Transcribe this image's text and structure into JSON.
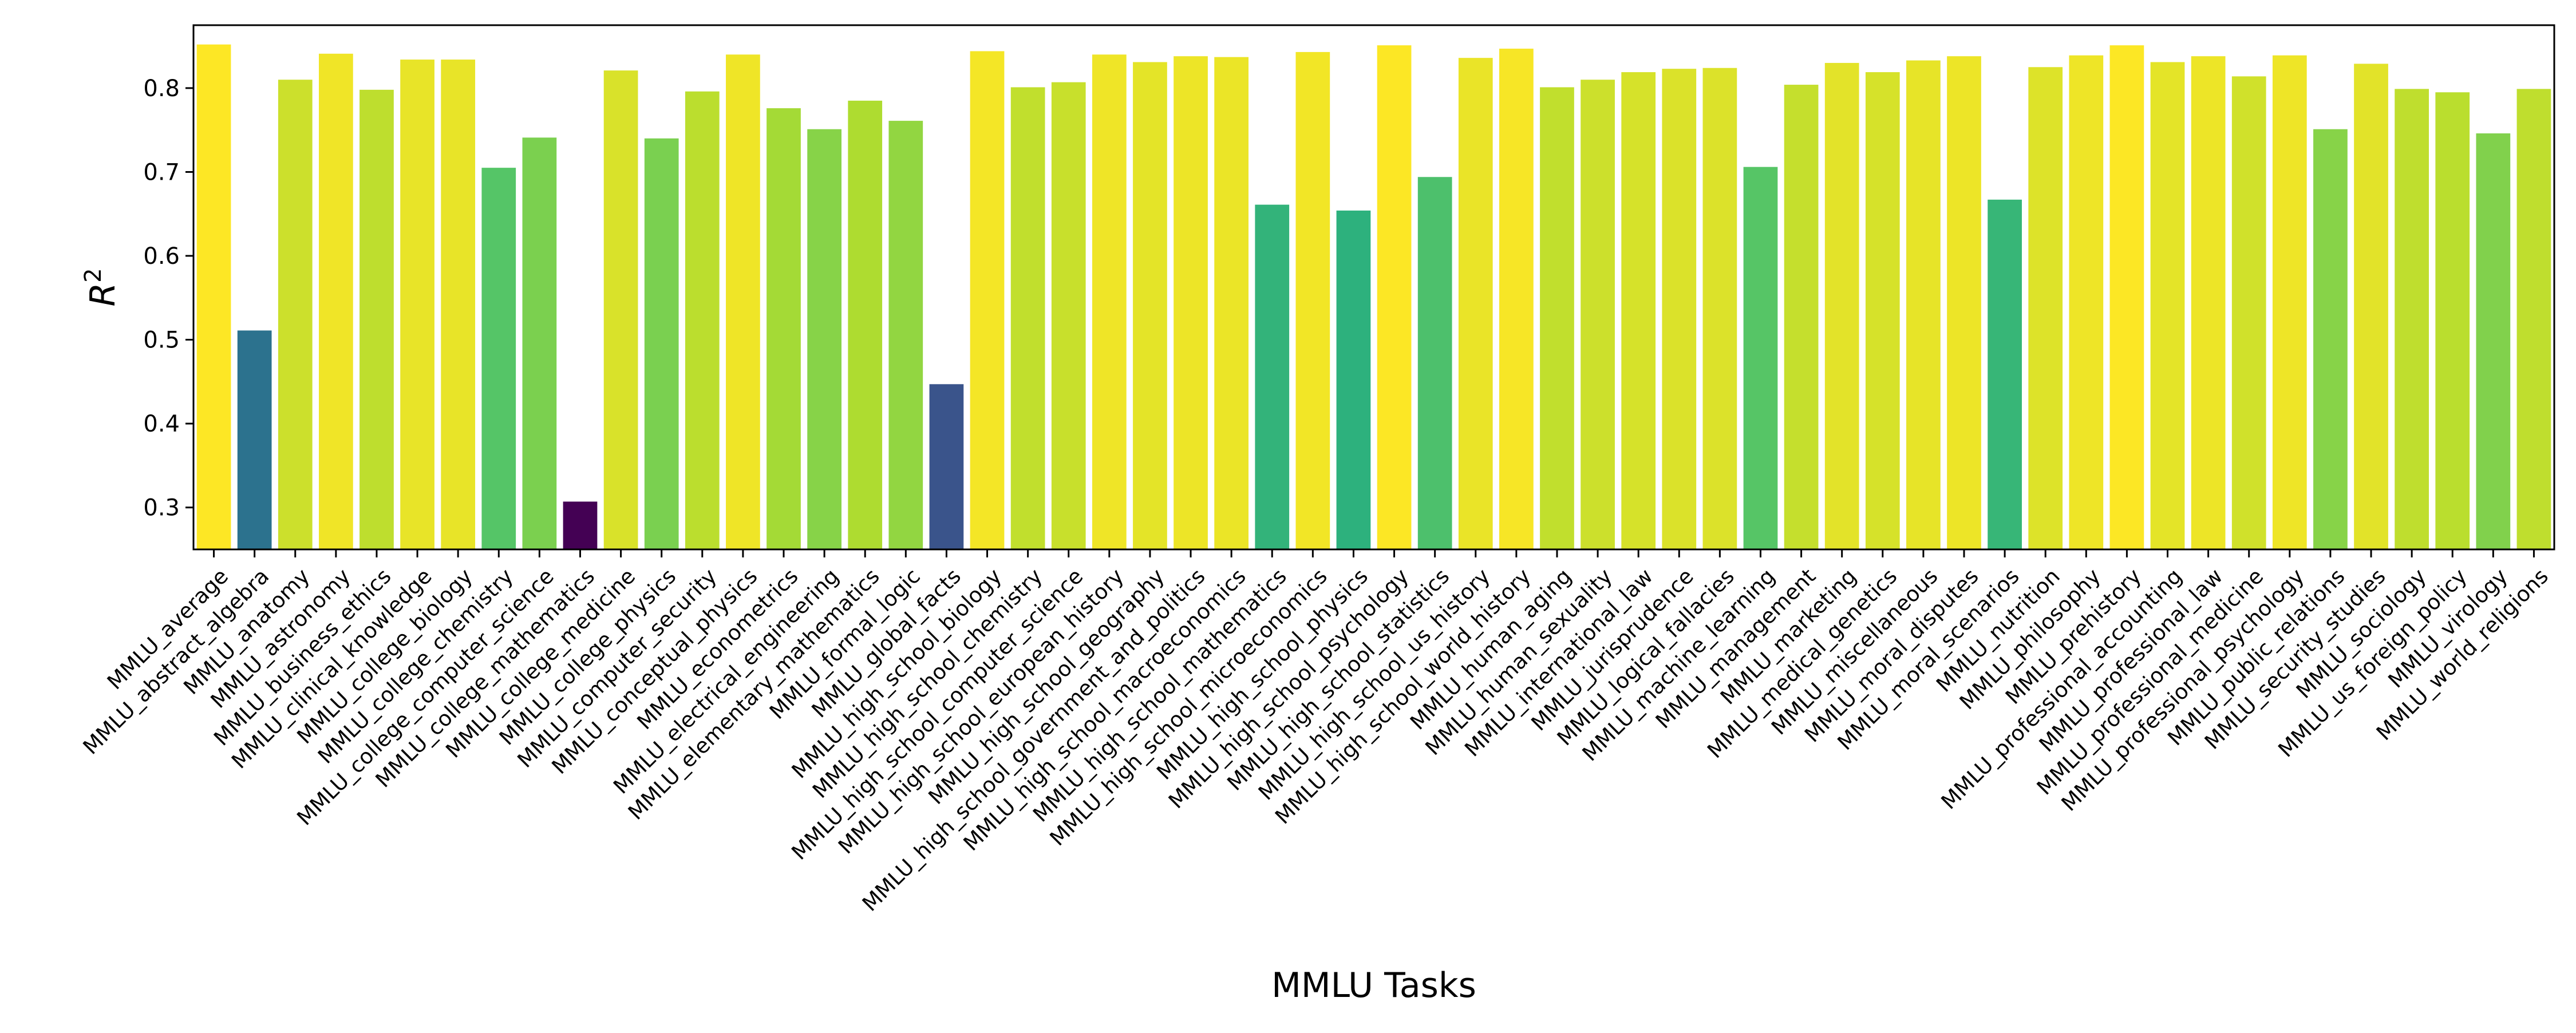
{
  "chart_data": {
    "type": "bar",
    "xlabel": "MMLU Tasks",
    "ylabel": "R",
    "ylabel_superscript": "2",
    "ylim": [
      0.25,
      0.875
    ],
    "yticks": [
      "0.3",
      "0.4",
      "0.5",
      "0.6",
      "0.7",
      "0.8"
    ],
    "grid": false,
    "legend": "none",
    "colormap": "viridis",
    "colors": {
      "low": "#440154",
      "high": "#fde725"
    },
    "categories": [
      "MMLU_average",
      "MMLU_abstract_algebra",
      "MMLU_anatomy",
      "MMLU_astronomy",
      "MMLU_business_ethics",
      "MMLU_clinical_knowledge",
      "MMLU_college_biology",
      "MMLU_college_chemistry",
      "MMLU_college_computer_science",
      "MMLU_college_mathematics",
      "MMLU_college_medicine",
      "MMLU_college_physics",
      "MMLU_computer_security",
      "MMLU_conceptual_physics",
      "MMLU_econometrics",
      "MMLU_electrical_engineering",
      "MMLU_elementary_mathematics",
      "MMLU_formal_logic",
      "MMLU_global_facts",
      "MMLU_high_school_biology",
      "MMLU_high_school_chemistry",
      "MMLU_high_school_computer_science",
      "MMLU_high_school_european_history",
      "MMLU_high_school_geography",
      "MMLU_high_school_government_and_politics",
      "MMLU_high_school_macroeconomics",
      "MMLU_high_school_mathematics",
      "MMLU_high_school_microeconomics",
      "MMLU_high_school_physics",
      "MMLU_high_school_psychology",
      "MMLU_high_school_statistics",
      "MMLU_high_school_us_history",
      "MMLU_high_school_world_history",
      "MMLU_human_aging",
      "MMLU_human_sexuality",
      "MMLU_international_law",
      "MMLU_jurisprudence",
      "MMLU_logical_fallacies",
      "MMLU_machine_learning",
      "MMLU_management",
      "MMLU_marketing",
      "MMLU_medical_genetics",
      "MMLU_miscellaneous",
      "MMLU_moral_disputes",
      "MMLU_moral_scenarios",
      "MMLU_nutrition",
      "MMLU_philosophy",
      "MMLU_prehistory",
      "MMLU_professional_accounting",
      "MMLU_professional_law",
      "MMLU_professional_medicine",
      "MMLU_professional_psychology",
      "MMLU_public_relations",
      "MMLU_security_studies",
      "MMLU_sociology",
      "MMLU_us_foreign_policy",
      "MMLU_virology",
      "MMLU_world_religions"
    ],
    "values": [
      0.852,
      0.511,
      0.81,
      0.841,
      0.798,
      0.834,
      0.834,
      0.705,
      0.741,
      0.307,
      0.821,
      0.74,
      0.796,
      0.84,
      0.776,
      0.751,
      0.785,
      0.761,
      0.447,
      0.844,
      0.801,
      0.807,
      0.84,
      0.831,
      0.838,
      0.837,
      0.661,
      0.843,
      0.654,
      0.851,
      0.694,
      0.836,
      0.847,
      0.801,
      0.81,
      0.819,
      0.823,
      0.824,
      0.706,
      0.804,
      0.83,
      0.819,
      0.833,
      0.838,
      0.667,
      0.825,
      0.839,
      0.851,
      0.831,
      0.838,
      0.814,
      0.839,
      0.751,
      0.829,
      0.799,
      0.795,
      0.746,
      0.799
    ]
  }
}
